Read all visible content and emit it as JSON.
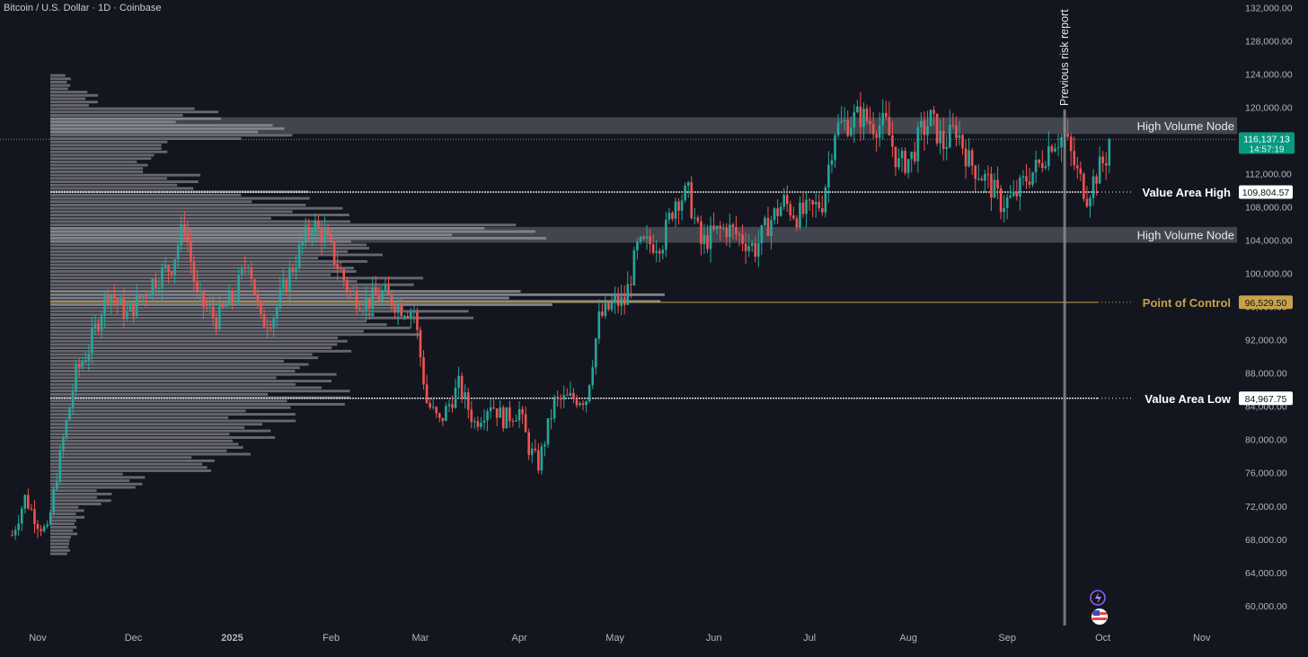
{
  "header": {
    "symbol_title": "Bitcoin / U.S. Dollar · 1D · Coinbase"
  },
  "colors": {
    "background": "#14161f",
    "up_candle": "#26a69a",
    "down_candle": "#ef5350",
    "volume_profile": "#d8d8dc",
    "poc": "#c8a24a",
    "hvn_band": "#4a4d57",
    "current_price_badge": "#089981",
    "text": "#b2b5be"
  },
  "chart_data": {
    "type": "candlestick",
    "title": "Bitcoin / U.S. Dollar · 1D · Coinbase",
    "ylim": [
      56000,
      133500
    ],
    "y_ticks": [
      "132,000.00",
      "128,000.00",
      "124,000.00",
      "120,000.00",
      "116,000.00",
      "112,000.00",
      "108,000.00",
      "104,000.00",
      "100,000.00",
      "96,000.00",
      "92,000.00",
      "88,000.00",
      "84,000.00",
      "80,000.00",
      "76,000.00",
      "72,000.00",
      "68,000.00",
      "64,000.00",
      "60,000.00"
    ],
    "y_tick_values": [
      132000,
      128000,
      124000,
      120000,
      116000,
      112000,
      108000,
      104000,
      100000,
      96000,
      92000,
      88000,
      84000,
      80000,
      76000,
      72000,
      68000,
      64000,
      60000
    ],
    "x_labels": [
      {
        "label": "Nov",
        "day": 0,
        "bold": false
      },
      {
        "label": "Dec",
        "day": 30,
        "bold": false
      },
      {
        "label": "2025",
        "day": 61,
        "bold": true
      },
      {
        "label": "Feb",
        "day": 92,
        "bold": false
      },
      {
        "label": "Mar",
        "day": 120,
        "bold": false
      },
      {
        "label": "Apr",
        "day": 151,
        "bold": false
      },
      {
        "label": "May",
        "day": 181,
        "bold": false
      },
      {
        "label": "Jun",
        "day": 212,
        "bold": false
      },
      {
        "label": "Jul",
        "day": 242,
        "bold": false
      },
      {
        "label": "Aug",
        "day": 273,
        "bold": false
      },
      {
        "label": "Sep",
        "day": 304,
        "bold": false
      },
      {
        "label": "Oct",
        "day": 334,
        "bold": false
      },
      {
        "label": "Nov",
        "day": 365,
        "bold": false
      }
    ],
    "price_path": [
      [
        -8,
        68500
      ],
      [
        -4,
        73000
      ],
      [
        0,
        70000
      ],
      [
        3,
        68800
      ],
      [
        6,
        75800
      ],
      [
        8,
        80000
      ],
      [
        12,
        88000
      ],
      [
        16,
        91000
      ],
      [
        22,
        98000
      ],
      [
        28,
        95000
      ],
      [
        32,
        97000
      ],
      [
        36,
        99000
      ],
      [
        42,
        101000
      ],
      [
        46,
        106000
      ],
      [
        50,
        97000
      ],
      [
        56,
        94500
      ],
      [
        62,
        97500
      ],
      [
        66,
        102000
      ],
      [
        70,
        94000
      ],
      [
        74,
        95000
      ],
      [
        79,
        100000
      ],
      [
        86,
        106000
      ],
      [
        90,
        104500
      ],
      [
        94,
        101000
      ],
      [
        98,
        97600
      ],
      [
        103,
        96500
      ],
      [
        108,
        97500
      ],
      [
        114,
        96000
      ],
      [
        118,
        95500
      ],
      [
        122,
        84500
      ],
      [
        126,
        82000
      ],
      [
        132,
        86500
      ],
      [
        137,
        82000
      ],
      [
        142,
        84500
      ],
      [
        146,
        82500
      ],
      [
        151,
        83500
      ],
      [
        154,
        79000
      ],
      [
        157,
        77000
      ],
      [
        162,
        84500
      ],
      [
        168,
        85000
      ],
      [
        172,
        85000
      ],
      [
        176,
        94500
      ],
      [
        181,
        96500
      ],
      [
        184,
        96500
      ],
      [
        188,
        103000
      ],
      [
        192,
        103600
      ],
      [
        196,
        104000
      ],
      [
        200,
        109000
      ],
      [
        204,
        109500
      ],
      [
        208,
        103500
      ],
      [
        212,
        104800
      ],
      [
        216,
        105500
      ],
      [
        220,
        104500
      ],
      [
        225,
        103000
      ],
      [
        229,
        106000
      ],
      [
        234,
        108600
      ],
      [
        238,
        107000
      ],
      [
        242,
        107500
      ],
      [
        246,
        108600
      ],
      [
        250,
        117500
      ],
      [
        254,
        118200
      ],
      [
        258,
        119000
      ],
      [
        262,
        118000
      ],
      [
        266,
        117800
      ],
      [
        270,
        113000
      ],
      [
        274,
        114000
      ],
      [
        277,
        117000
      ],
      [
        280,
        118500
      ],
      [
        284,
        115500
      ],
      [
        288,
        117500
      ],
      [
        292,
        113500
      ],
      [
        298,
        111000
      ],
      [
        302,
        108500
      ],
      [
        306,
        109000
      ],
      [
        310,
        111500
      ],
      [
        314,
        113000
      ],
      [
        318,
        116000
      ],
      [
        322,
        116500
      ],
      [
        326,
        112000
      ],
      [
        329,
        109500
      ],
      [
        332,
        112000
      ],
      [
        335,
        114000
      ],
      [
        336,
        116137
      ]
    ],
    "volume_profile_rows": [
      {
        "low": 66000,
        "high": 68000,
        "volume": 0.03
      },
      {
        "low": 68000,
        "high": 70000,
        "volume": 0.04
      },
      {
        "low": 70000,
        "high": 72000,
        "volume": 0.05
      },
      {
        "low": 72000,
        "high": 74000,
        "volume": 0.09
      },
      {
        "low": 74000,
        "high": 76000,
        "volume": 0.14
      },
      {
        "low": 76000,
        "high": 78000,
        "volume": 0.25
      },
      {
        "low": 78000,
        "high": 80000,
        "volume": 0.3
      },
      {
        "low": 80000,
        "high": 82000,
        "volume": 0.33
      },
      {
        "low": 82000,
        "high": 84000,
        "volume": 0.36
      },
      {
        "low": 84000,
        "high": 86000,
        "volume": 0.44
      },
      {
        "low": 86000,
        "high": 88000,
        "volume": 0.42
      },
      {
        "low": 88000,
        "high": 90000,
        "volume": 0.4
      },
      {
        "low": 90000,
        "high": 92000,
        "volume": 0.46
      },
      {
        "low": 92000,
        "high": 94000,
        "volume": 0.55
      },
      {
        "low": 94000,
        "high": 96000,
        "volume": 0.62
      },
      {
        "low": 96000,
        "high": 98000,
        "volume": 0.9
      },
      {
        "low": 98000,
        "high": 100000,
        "volume": 0.55
      },
      {
        "low": 100000,
        "high": 102000,
        "volume": 0.48
      },
      {
        "low": 102000,
        "high": 104000,
        "volume": 0.5
      },
      {
        "low": 104000,
        "high": 106000,
        "volume": 0.73
      },
      {
        "low": 106000,
        "high": 108000,
        "volume": 0.44
      },
      {
        "low": 108000,
        "high": 110000,
        "volume": 0.38
      },
      {
        "low": 110000,
        "high": 112000,
        "volume": 0.22
      },
      {
        "low": 112000,
        "high": 114000,
        "volume": 0.15
      },
      {
        "low": 114000,
        "high": 116000,
        "volume": 0.18
      },
      {
        "low": 116000,
        "high": 118000,
        "volume": 0.36
      },
      {
        "low": 118000,
        "high": 120000,
        "volume": 0.25
      },
      {
        "low": 120000,
        "high": 122000,
        "volume": 0.07
      },
      {
        "low": 122000,
        "high": 124000,
        "volume": 0.03
      }
    ],
    "levels": [
      {
        "name": "Value Area High",
        "value": 109804.57,
        "badge": "109,804.57",
        "color": "#ffffff"
      },
      {
        "name": "Point of Control",
        "value": 96529.5,
        "badge": "96,529.50",
        "color": "#c8a24a"
      },
      {
        "name": "Value Area Low",
        "value": 84967.75,
        "badge": "84,967.75",
        "color": "#ffffff"
      }
    ],
    "high_volume_nodes": [
      {
        "label": "High Volume Node",
        "low": 116800,
        "high": 118800
      },
      {
        "label": "High Volume Node",
        "low": 103700,
        "high": 105600
      }
    ],
    "current_price": {
      "value": 116137.13,
      "label": "116,137.13",
      "countdown": "14:57:19"
    },
    "vertical_marker": {
      "label": "Previous risk report",
      "day": 322
    }
  }
}
